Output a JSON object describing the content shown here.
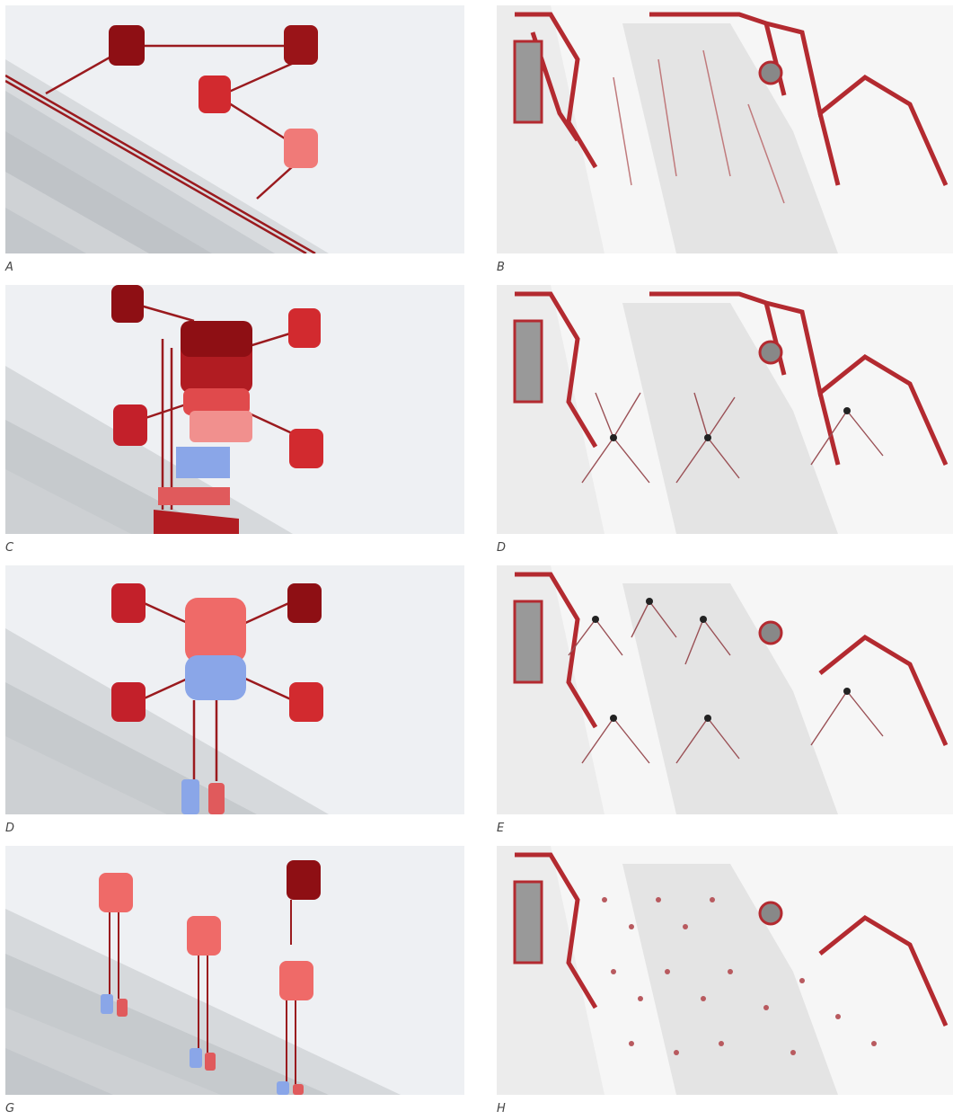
{
  "panels": [
    {
      "id": "A",
      "caption": "A",
      "kind": "render"
    },
    {
      "id": "B",
      "caption": "B",
      "kind": "map"
    },
    {
      "id": "C",
      "caption": "C",
      "kind": "render"
    },
    {
      "id": "D_map",
      "caption": "D",
      "kind": "map"
    },
    {
      "id": "D_render",
      "caption": "D",
      "kind": "render"
    },
    {
      "id": "E",
      "caption": "E",
      "kind": "map"
    },
    {
      "id": "G",
      "caption": "G",
      "kind": "render"
    },
    {
      "id": "H",
      "caption": "H",
      "kind": "map"
    }
  ],
  "colors": {
    "dark_red": "#8e0f14",
    "red": "#c8262c",
    "light_red": "#e96463",
    "blue": "#8aa6e8",
    "map_bg": "#f4f4f4",
    "ground_light": "#eceef0",
    "stripe": "#c9cdd1"
  }
}
